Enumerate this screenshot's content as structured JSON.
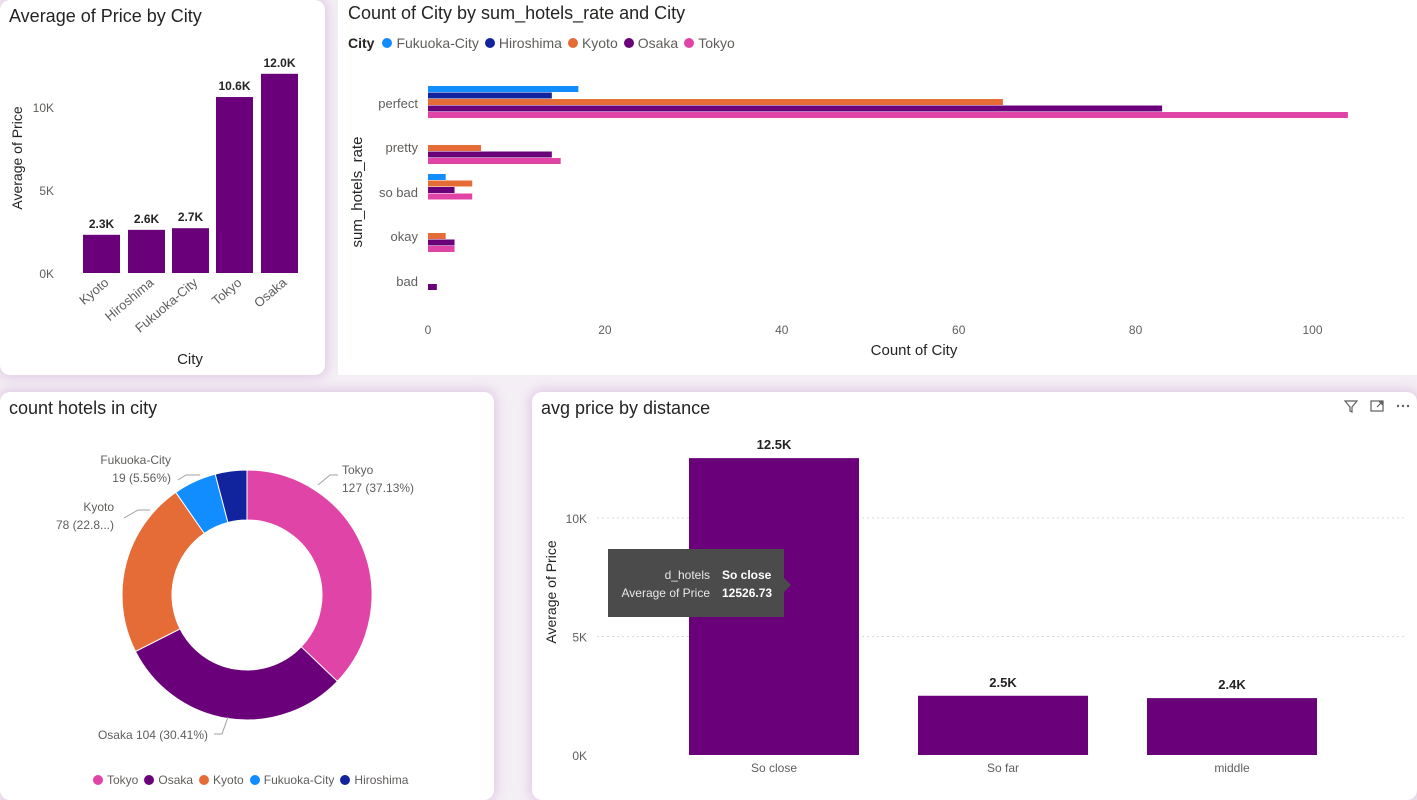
{
  "colors": {
    "fukuoka": "#118DFF",
    "hiroshima": "#12239E",
    "kyoto": "#E66C37",
    "osaka": "#6B007B",
    "tokyo": "#E044A7",
    "bar_purple": "#6B007B"
  },
  "chart_data": [
    {
      "type": "bar",
      "title": "Average of Price by City",
      "xlabel": "City",
      "ylabel": "Average of Price",
      "categories": [
        "Kyoto",
        "Hiroshima",
        "Fukuoka-City",
        "Tokyo",
        "Osaka"
      ],
      "values": [
        2300,
        2600,
        2700,
        10600,
        12000
      ],
      "data_labels": [
        "2.3K",
        "2.6K",
        "2.7K",
        "10.6K",
        "12.0K"
      ],
      "y_ticks": [
        0,
        5000,
        10000
      ],
      "y_tick_labels": [
        "0K",
        "5K",
        "10K"
      ],
      "ylim": [
        0,
        12000
      ]
    },
    {
      "type": "bar",
      "orientation": "horizontal",
      "title": "Count of City by sum_hotels_rate and City",
      "xlabel": "Count of City",
      "ylabel": "sum_hotels_rate",
      "legend_title": "City",
      "legend_placement": "top-left",
      "categories": [
        "perfect",
        "pretty",
        "so bad",
        "okay",
        "bad"
      ],
      "series": [
        {
          "name": "Fukuoka-City",
          "values": [
            17,
            0,
            2,
            0,
            0
          ]
        },
        {
          "name": "Hiroshima",
          "values": [
            14,
            0,
            0,
            0,
            0
          ]
        },
        {
          "name": "Kyoto",
          "values": [
            65,
            6,
            5,
            2,
            0
          ]
        },
        {
          "name": "Osaka",
          "values": [
            83,
            14,
            3,
            3,
            1
          ]
        },
        {
          "name": "Tokyo",
          "values": [
            104,
            15,
            5,
            3,
            0
          ]
        }
      ],
      "x_ticks": [
        0,
        20,
        40,
        60,
        80,
        100
      ],
      "xlim": [
        0,
        104
      ]
    },
    {
      "type": "pie",
      "subtype": "donut",
      "title": "count hotels in city",
      "categories": [
        "Tokyo",
        "Osaka",
        "Kyoto",
        "Fukuoka-City",
        "Hiroshima"
      ],
      "values": [
        127,
        104,
        78,
        19,
        14
      ],
      "slice_labels": [
        {
          "name": "Tokyo",
          "detail": "127 (37.13%)"
        },
        {
          "name": "",
          "detail": "Osaka 104 (30.41%)"
        },
        {
          "name": "Kyoto",
          "detail": "78 (22.8...)"
        },
        {
          "name": "Fukuoka-City",
          "detail": "19 (5.56%)"
        }
      ],
      "legend_placement": "bottom-left"
    },
    {
      "type": "bar",
      "title": "avg price by distance",
      "xlabel": "",
      "ylabel": "Average of Price",
      "categories": [
        "So close",
        "So far",
        "middle"
      ],
      "values": [
        12526.73,
        2500,
        2400
      ],
      "data_labels": [
        "12.5K",
        "2.5K",
        "2.4K"
      ],
      "y_ticks": [
        0,
        5000,
        10000
      ],
      "y_tick_labels": [
        "0K",
        "5K",
        "10K"
      ],
      "ylim": [
        0,
        12526.73
      ],
      "grid": true,
      "tooltip": {
        "rows": [
          {
            "key": "d_hotels",
            "value": "So close"
          },
          {
            "key": "Average of Price",
            "value": "12526.73"
          }
        ]
      },
      "header_icons": [
        "filter-icon",
        "expand-icon",
        "more-options-icon"
      ]
    }
  ]
}
